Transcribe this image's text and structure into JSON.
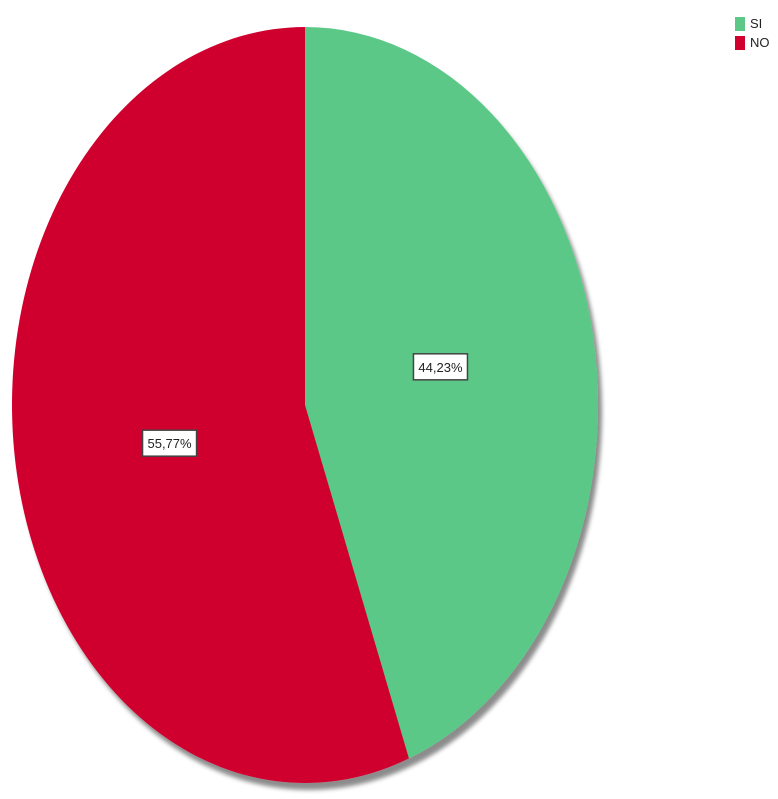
{
  "chart_data": {
    "type": "pie",
    "title": "",
    "series": [
      {
        "categories": [
          "SI",
          "NO"
        ],
        "values": [
          44.23,
          55.77
        ],
        "labels": [
          "44,23%",
          "55,77%"
        ],
        "colors": [
          "#5bc887",
          "#d0002f"
        ]
      }
    ],
    "legend": {
      "position": "top-right",
      "entries": [
        "SI",
        "NO"
      ]
    },
    "start_angle": "12 o'clock",
    "direction": "clockwise"
  }
}
